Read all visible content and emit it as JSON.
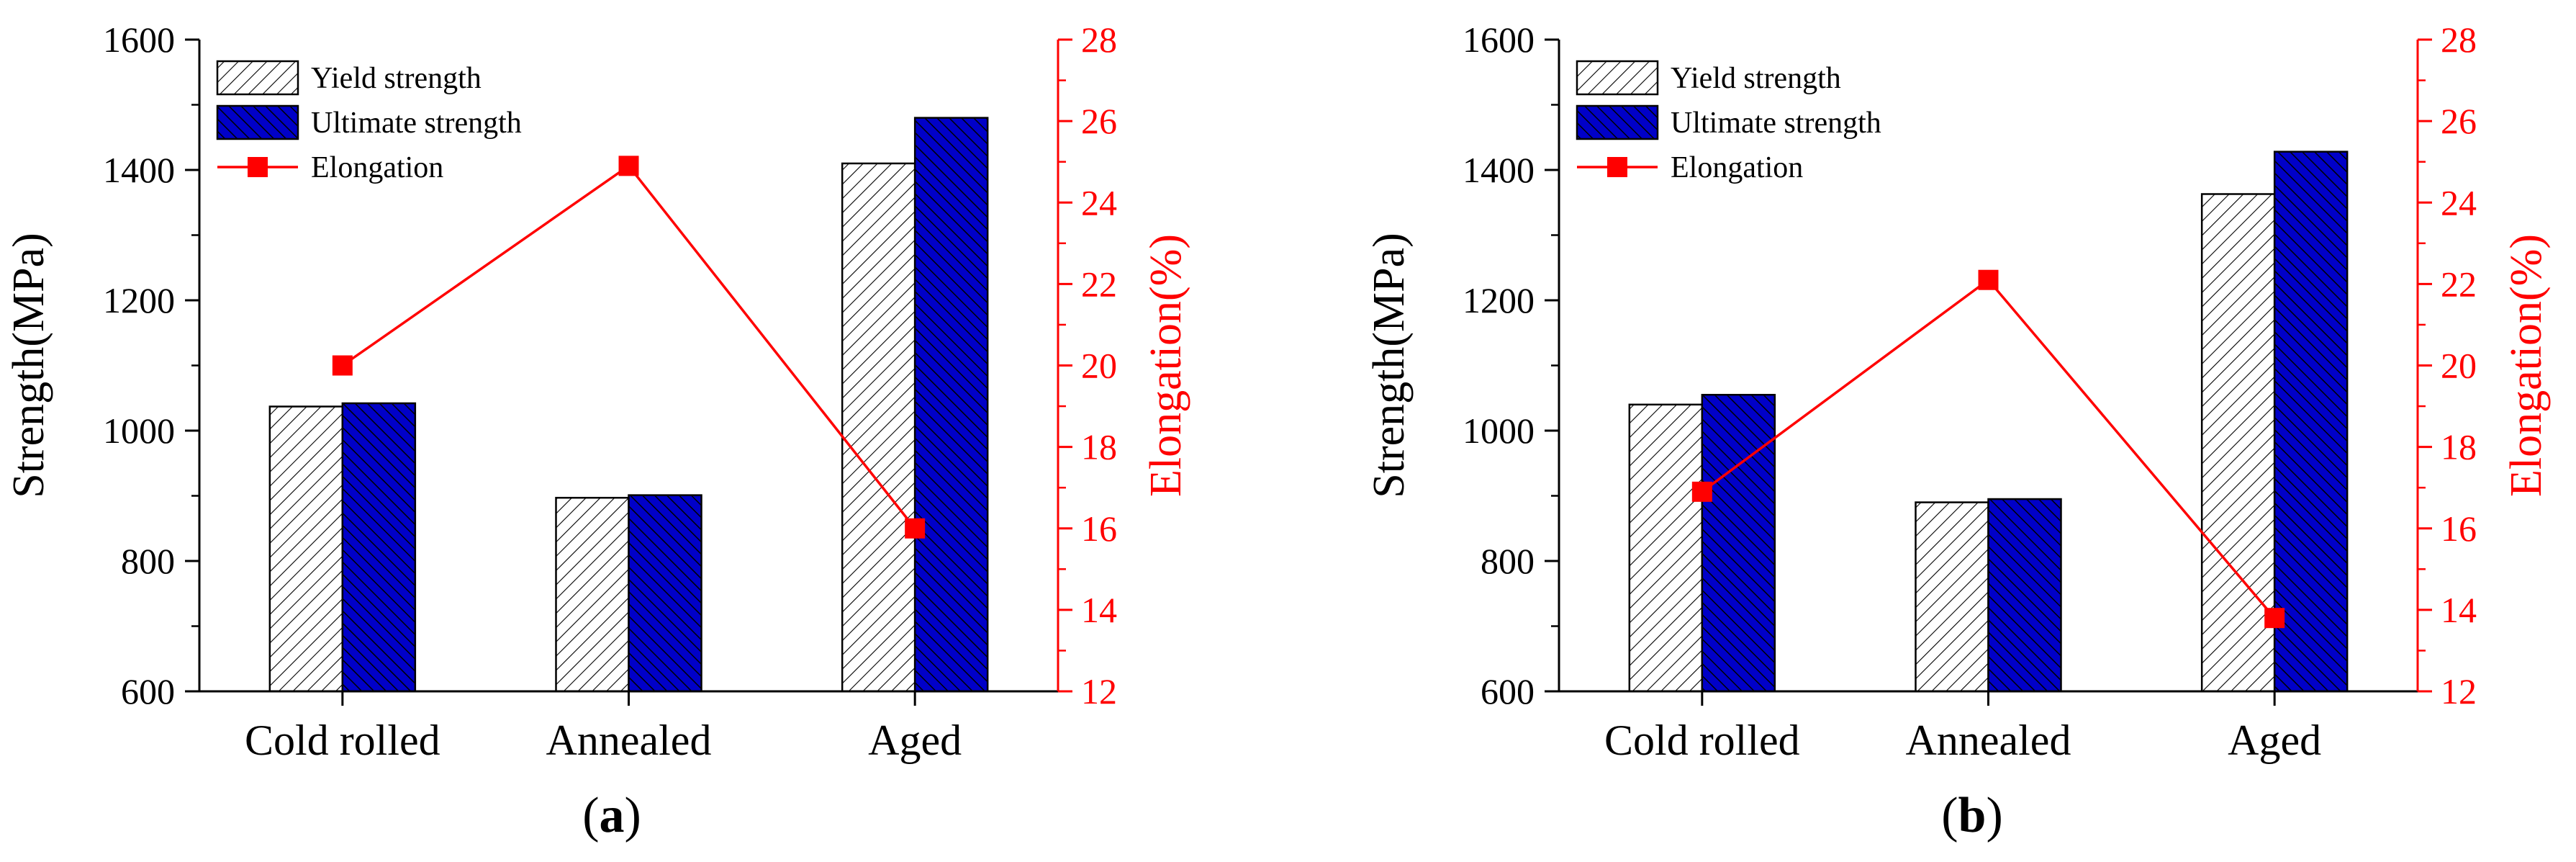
{
  "colors": {
    "axis": "#000000",
    "right_axis": "#ff0000",
    "ultimate_fill": "#0000c8",
    "ultimate_hatch": "#000000",
    "yield_hatch": "#000000",
    "elongation": "#ff0000"
  },
  "chart_data": [
    {
      "type": "bar",
      "panel_label": "a",
      "categories": [
        "Cold rolled",
        "Annealed",
        "Aged"
      ],
      "series": [
        {
          "name": "Yield strength",
          "axis": "left",
          "values": [
            1037,
            897,
            1410
          ]
        },
        {
          "name": "Ultimate strength",
          "axis": "left",
          "values": [
            1042,
            901,
            1480
          ]
        },
        {
          "name": "Elongation",
          "axis": "right",
          "type": "line",
          "values": [
            20.0,
            24.9,
            16.0
          ]
        }
      ],
      "ylabel": "Strength(MPa)",
      "y2label": "Elongation(%)",
      "ylim": [
        600,
        1600
      ],
      "y2lim": [
        12,
        28
      ],
      "yticks": [
        "600",
        "800",
        "1000",
        "1200",
        "1400",
        "1600"
      ],
      "y2ticks": [
        "12",
        "14",
        "16",
        "18",
        "20",
        "22",
        "24",
        "26",
        "28"
      ],
      "legend": [
        "Yield strength",
        "Ultimate strength",
        "Elongation"
      ],
      "legend_position": "top-left"
    },
    {
      "type": "bar",
      "panel_label": "b",
      "categories": [
        "Cold rolled",
        "Annealed",
        "Aged"
      ],
      "series": [
        {
          "name": "Yield strength",
          "axis": "left",
          "values": [
            1040,
            890,
            1363
          ]
        },
        {
          "name": "Ultimate strength",
          "axis": "left",
          "values": [
            1055,
            895,
            1428
          ]
        },
        {
          "name": "Elongation",
          "axis": "right",
          "type": "line",
          "values": [
            16.9,
            22.1,
            13.8
          ]
        }
      ],
      "ylabel": "Strength(MPa)",
      "y2label": "Elongation(%)",
      "ylim": [
        600,
        1600
      ],
      "y2lim": [
        12,
        28
      ],
      "yticks": [
        "600",
        "800",
        "1000",
        "1200",
        "1400",
        "1600"
      ],
      "y2ticks": [
        "12",
        "14",
        "16",
        "18",
        "20",
        "22",
        "24",
        "26",
        "28"
      ],
      "legend": [
        "Yield strength",
        "Ultimate strength",
        "Elongation"
      ],
      "legend_position": "top-left"
    }
  ]
}
